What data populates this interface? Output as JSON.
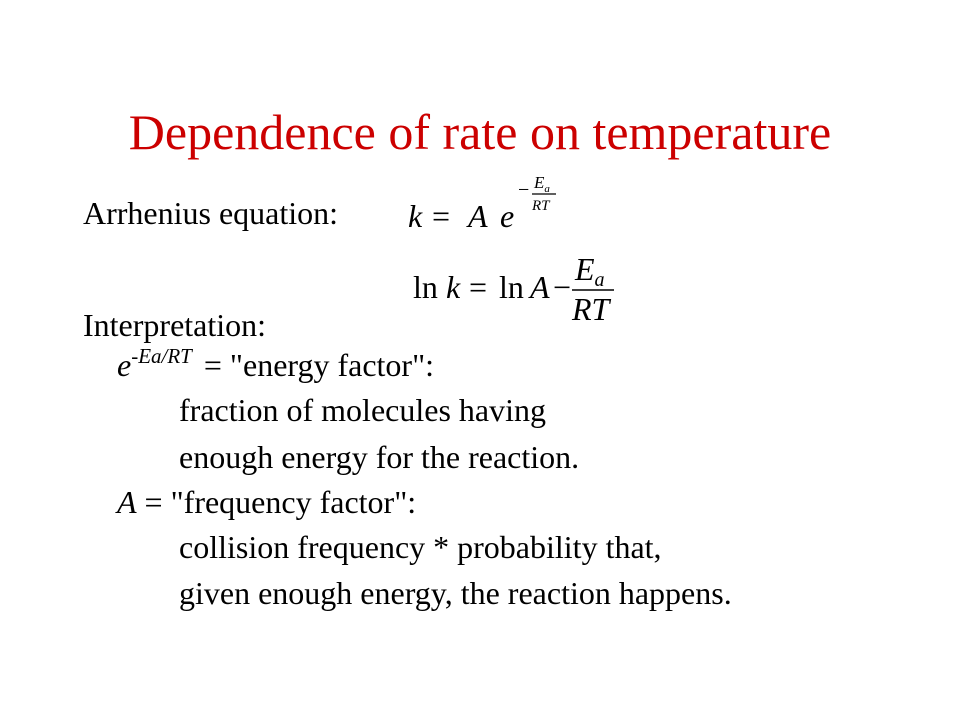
{
  "slide": {
    "title": "Dependence of rate on temperature",
    "arrhenius_label": "Arrhenius equation:",
    "interpretation_label": "Interpretation:",
    "energy_factor": {
      "base": "e",
      "exponent": "-Ea/RT",
      "text": " = \"energy factor\":",
      "desc_line1": "fraction of molecules having",
      "desc_line2": "enough energy for the reaction."
    },
    "frequency_factor": {
      "symbol": "A",
      "text": " = \"frequency factor\":",
      "desc_line1": "collision frequency * probability that,",
      "desc_line2": "given enough energy, the reaction happens."
    }
  },
  "equation1": {
    "lhs": "k",
    "equals": "=",
    "coef": "A",
    "base": "e",
    "minus": "−",
    "num_letter": "E",
    "num_sub": "a",
    "den": "RT"
  },
  "equation2": {
    "ln_left": "ln",
    "lhs": "k",
    "equals": "=",
    "ln_right": "ln",
    "coef": "A",
    "minus": "−",
    "num_letter": "E",
    "num_sub": "a",
    "den": "RT"
  },
  "colors": {
    "title": "#cc0000",
    "text": "#000000",
    "background": "#ffffff"
  }
}
